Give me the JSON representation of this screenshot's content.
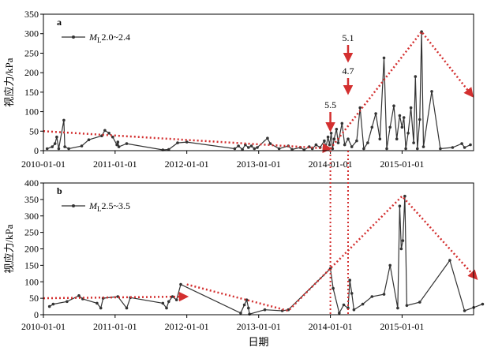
{
  "colors": {
    "series": "#333333",
    "trend": "#d32f2f",
    "axis": "#000000"
  },
  "xlabel": "日期",
  "ylabel": "视应力/kPa",
  "x_ticks": [
    "2010-01-01",
    "2011-01-01",
    "2012-01-01",
    "2013-01-01",
    "2014-01-01",
    "2015-01-01"
  ],
  "chart_data": [
    {
      "type": "line",
      "panel": "a",
      "legend": {
        "name_italic": "M",
        "name_sub": "L",
        "name_rest": "2.0~2.4",
        "placement": "top-left"
      },
      "ylim": [
        0,
        350
      ],
      "yticks": [
        0,
        50,
        100,
        150,
        200,
        250,
        300,
        350
      ],
      "xlim": [
        "2010-01-01",
        "2015-12-31"
      ],
      "series": [
        {
          "points": [
            [
              "2010-01-20",
              5
            ],
            [
              "2010-02-15",
              10
            ],
            [
              "2010-03-01",
              18
            ],
            [
              "2010-03-10",
              35
            ],
            [
              "2010-03-20",
              5
            ],
            [
              "2010-04-15",
              78
            ],
            [
              "2010-04-20",
              10
            ],
            [
              "2010-05-10",
              5
            ],
            [
              "2010-07-15",
              12
            ],
            [
              "2010-08-20",
              28
            ],
            [
              "2010-10-25",
              38
            ],
            [
              "2010-11-10",
              52
            ],
            [
              "2010-12-01",
              45
            ],
            [
              "2010-12-20",
              35
            ],
            [
              "2011-01-10",
              15
            ],
            [
              "2011-01-15",
              22
            ],
            [
              "2011-01-20",
              10
            ],
            [
              "2011-03-01",
              18
            ],
            [
              "2011-09-01",
              2
            ],
            [
              "2011-10-01",
              3
            ],
            [
              "2011-11-15",
              20
            ],
            [
              "2012-01-01",
              22
            ],
            [
              "2012-09-01",
              5
            ],
            [
              "2012-09-20",
              12
            ],
            [
              "2012-10-10",
              3
            ],
            [
              "2012-10-25",
              15
            ],
            [
              "2012-11-10",
              8
            ],
            [
              "2012-11-25",
              12
            ],
            [
              "2012-12-10",
              5
            ],
            [
              "2012-12-25",
              8
            ],
            [
              "2013-02-15",
              32
            ],
            [
              "2013-03-01",
              18
            ],
            [
              "2013-04-15",
              5
            ],
            [
              "2013-06-01",
              12
            ],
            [
              "2013-06-20",
              3
            ],
            [
              "2013-08-01",
              8
            ],
            [
              "2013-08-20",
              2
            ],
            [
              "2013-09-15",
              10
            ],
            [
              "2013-10-01",
              5
            ],
            [
              "2013-10-20",
              15
            ],
            [
              "2013-11-10",
              8
            ],
            [
              "2013-12-01",
              25
            ],
            [
              "2013-12-10",
              10
            ],
            [
              "2013-12-20",
              35
            ],
            [
              "2013-12-28",
              15
            ],
            [
              "2014-01-05",
              45
            ],
            [
              "2014-01-12",
              5
            ],
            [
              "2014-01-20",
              30
            ],
            [
              "2014-02-01",
              55
            ],
            [
              "2014-02-10",
              20
            ],
            [
              "2014-03-01",
              70
            ],
            [
              "2014-03-15",
              15
            ],
            [
              "2014-04-01",
              30
            ],
            [
              "2014-04-20",
              10
            ],
            [
              "2014-05-15",
              25
            ],
            [
              "2014-06-01",
              110
            ],
            [
              "2014-06-20",
              5
            ],
            [
              "2014-07-10",
              20
            ],
            [
              "2014-08-01",
              60
            ],
            [
              "2014-08-20",
              95
            ],
            [
              "2014-09-10",
              30
            ],
            [
              "2014-10-01",
              238
            ],
            [
              "2014-10-15",
              5
            ],
            [
              "2014-11-01",
              60
            ],
            [
              "2014-11-20",
              115
            ],
            [
              "2014-12-05",
              30
            ],
            [
              "2014-12-20",
              90
            ],
            [
              "2015-01-01",
              60
            ],
            [
              "2015-01-10",
              85
            ],
            [
              "2015-01-20",
              5
            ],
            [
              "2015-02-01",
              45
            ],
            [
              "2015-02-15",
              110
            ],
            [
              "2015-03-01",
              20
            ],
            [
              "2015-03-10",
              190
            ],
            [
              "2015-03-20",
              5
            ],
            [
              "2015-04-01",
              80
            ],
            [
              "2015-04-10",
              305
            ],
            [
              "2015-04-20",
              10
            ],
            [
              "2015-06-01",
              152
            ],
            [
              "2015-07-15",
              5
            ],
            [
              "2015-09-15",
              8
            ],
            [
              "2015-11-01",
              18
            ],
            [
              "2015-11-15",
              8
            ],
            [
              "2015-12-15",
              15
            ]
          ]
        }
      ],
      "trends": [
        {
          "points": [
            [
              "2010-01-01",
              50
            ],
            [
              "2014-01-01",
              5
            ]
          ]
        },
        {
          "points": [
            [
              "2014-01-01",
              5
            ],
            [
              "2015-04-10",
              305
            ],
            [
              "2015-12-25",
              140
            ]
          ]
        }
      ],
      "annotations": [
        {
          "text": "5.5",
          "date": "2014-01-01"
        },
        {
          "text": "4.7",
          "date": "2014-04-01"
        },
        {
          "text": "5.1",
          "date": "2014-04-01"
        }
      ]
    },
    {
      "type": "line",
      "panel": "b",
      "legend": {
        "name_italic": "M",
        "name_sub": "L",
        "name_rest": "2.5~3.5",
        "placement": "top-left"
      },
      "ylim": [
        0,
        400
      ],
      "yticks": [
        0,
        50,
        100,
        150,
        200,
        250,
        300,
        350,
        400
      ],
      "xlim": [
        "2010-01-01",
        "2015-12-31"
      ],
      "series": [
        {
          "points": [
            [
              "2010-02-01",
              25
            ],
            [
              "2010-02-20",
              32
            ],
            [
              "2010-05-01",
              40
            ],
            [
              "2010-07-01",
              58
            ],
            [
              "2010-07-20",
              48
            ],
            [
              "2010-10-01",
              35
            ],
            [
              "2010-10-20",
              20
            ],
            [
              "2010-11-01",
              50
            ],
            [
              "2011-01-15",
              55
            ],
            [
              "2011-03-01",
              20
            ],
            [
              "2011-03-20",
              52
            ],
            [
              "2011-09-01",
              35
            ],
            [
              "2011-09-20",
              20
            ],
            [
              "2011-10-01",
              40
            ],
            [
              "2011-10-20",
              55
            ],
            [
              "2011-11-10",
              45
            ],
            [
              "2011-12-01",
              92
            ],
            [
              "2012-10-01",
              5
            ],
            [
              "2012-10-20",
              30
            ],
            [
              "2012-11-01",
              45
            ],
            [
              "2012-11-10",
              20
            ],
            [
              "2012-11-15",
              2
            ],
            [
              "2013-02-01",
              15
            ],
            [
              "2013-05-01",
              12
            ],
            [
              "2013-06-01",
              15
            ],
            [
              "2014-01-01",
              140
            ],
            [
              "2014-01-15",
              80
            ],
            [
              "2014-02-15",
              5
            ],
            [
              "2014-03-10",
              30
            ],
            [
              "2014-04-01",
              20
            ],
            [
              "2014-04-10",
              105
            ],
            [
              "2014-04-20",
              65
            ],
            [
              "2014-05-01",
              15
            ],
            [
              "2014-06-15",
              32
            ],
            [
              "2014-08-01",
              55
            ],
            [
              "2014-10-01",
              62
            ],
            [
              "2014-11-01",
              150
            ],
            [
              "2014-12-10",
              20
            ],
            [
              "2014-12-20",
              330
            ],
            [
              "2014-12-28",
              200
            ],
            [
              "2015-01-05",
              225
            ],
            [
              "2015-01-15",
              360
            ],
            [
              "2015-01-25",
              28
            ],
            [
              "2015-04-01",
              38
            ],
            [
              "2015-09-01",
              165
            ],
            [
              "2015-11-15",
              12
            ],
            [
              "2016-01-01",
              22
            ],
            [
              "2016-02-15",
              32
            ]
          ]
        }
      ],
      "trends": [
        {
          "points": [
            [
              "2010-01-01",
              50
            ],
            [
              "2012-01-01",
              55
            ]
          ]
        },
        {
          "points": [
            [
              "2012-01-01",
              92
            ],
            [
              "2013-06-01",
              12
            ],
            [
              "2015-01-01",
              360
            ],
            [
              "2016-01-15",
              110
            ]
          ]
        }
      ],
      "annotations": []
    }
  ]
}
